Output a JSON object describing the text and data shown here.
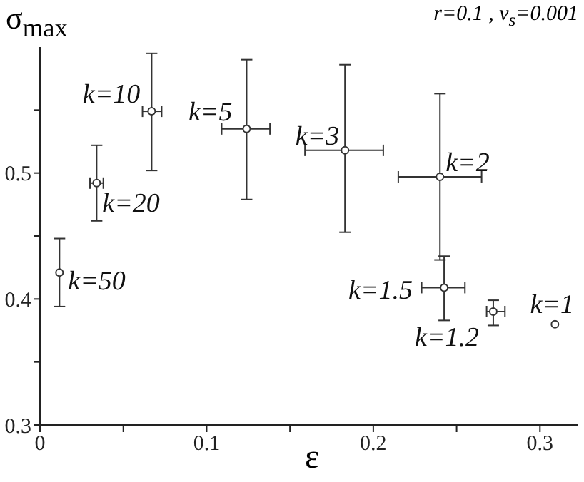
{
  "chart_data": {
    "type": "scatter",
    "title": "r=0.1 , v$_{s}$=0.001",
    "xlabel": "ε",
    "ylabel": "σ$_{max}$",
    "x": [
      0.0117,
      0.034,
      0.067,
      0.124,
      0.183,
      0.24,
      0.2425,
      0.272,
      0.309
    ],
    "series": [
      {
        "color": "#333333",
        "values": [
          0.421,
          0.492,
          0.549,
          0.535,
          0.518,
          0.497,
          0.409,
          0.39,
          0.38
        ],
        "errors": [
          [
            0.394,
            0.448
          ],
          [
            0.462,
            0.522
          ],
          [
            0.502,
            0.595
          ],
          [
            0.479,
            0.59
          ],
          [
            0.453,
            0.586
          ],
          [
            0.431,
            0.563
          ],
          [
            0.383,
            0.434
          ],
          [
            0.379,
            0.399
          ],
          null
        ],
        "xerrors": [
          null,
          [
            0.03,
            0.038
          ],
          [
            0.0615,
            0.073
          ],
          [
            0.109,
            0.138
          ],
          [
            0.159,
            0.206
          ],
          [
            0.215,
            0.265
          ],
          [
            0.229,
            0.255
          ],
          [
            0.268,
            0.279
          ],
          null
        ]
      }
    ],
    "marker": "circle",
    "xlim": [
      0,
      0.323
    ],
    "ylim": [
      0.3,
      0.6
    ],
    "xticks": [
      0,
      {
        "value": 0.05,
        "label": null
      },
      0.1,
      {
        "value": 0.15,
        "label": null
      },
      0.2,
      {
        "value": 0.25,
        "label": null
      },
      0.3
    ],
    "yticks": [
      0.3,
      {
        "value": 0.35,
        "label": null
      },
      0.4,
      {
        "value": 0.45,
        "label": null
      },
      0.5,
      {
        "value": 0.55,
        "label": null
      }
    ],
    "annotations": [
      {
        "text": "k=50",
        "x": 0.0117,
        "y": 0.421
      },
      {
        "text": "k=20",
        "x": 0.034,
        "y": 0.492
      },
      {
        "text": "k=10",
        "x": 0.067,
        "y": 0.549
      },
      {
        "text": "k=5",
        "x": 0.124,
        "y": 0.535
      },
      {
        "text": "k=3",
        "x": 0.183,
        "y": 0.518
      },
      {
        "text": "k=2",
        "x": 0.24,
        "y": 0.497
      },
      {
        "text": "k=1.5",
        "x": 0.2425,
        "y": 0.409
      },
      {
        "text": "k=1.2",
        "x": 0.272,
        "y": 0.39
      },
      {
        "text": "k=1",
        "x": 0.309,
        "y": 0.38
      }
    ]
  }
}
